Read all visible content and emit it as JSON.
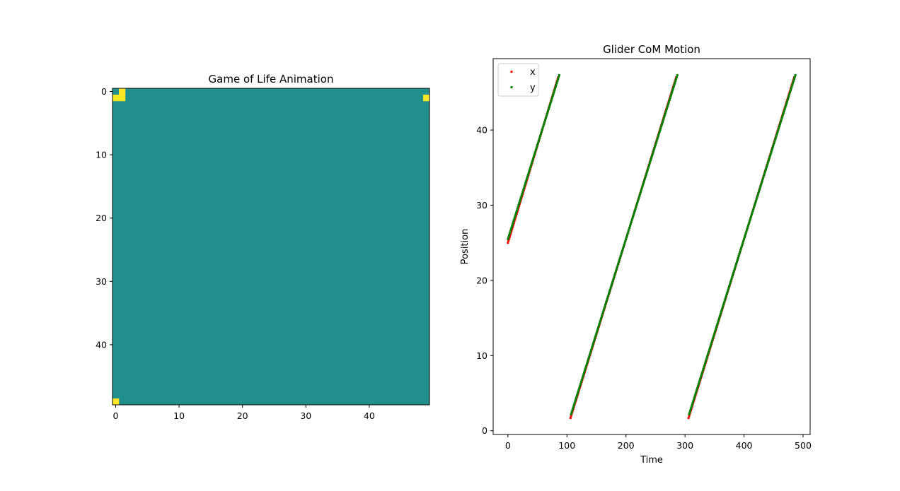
{
  "figure": {
    "background": "#ffffff"
  },
  "chart_data": [
    {
      "type": "heatmap",
      "title": "Game of Life Animation",
      "grid_size": [
        50,
        50
      ],
      "xlim": [
        -0.5,
        49.5
      ],
      "ylim": [
        49.5,
        -0.5
      ],
      "xticks": [
        0,
        10,
        20,
        30,
        40
      ],
      "yticks": [
        0,
        10,
        20,
        30,
        40
      ],
      "colors": {
        "dead": "#21908d",
        "alive": "#fde725"
      },
      "alive_cells": [
        [
          0,
          0
        ],
        [
          0,
          1
        ],
        [
          1,
          1
        ],
        [
          1,
          0
        ],
        [
          49,
          1
        ],
        [
          0,
          49
        ]
      ],
      "dead_highlight_cells": [
        [
          0,
          0
        ]
      ]
    },
    {
      "type": "scatter",
      "title": "Glider CoM Motion",
      "xlabel": "Time",
      "ylabel": "Position",
      "xlim": [
        -25,
        512
      ],
      "ylim": [
        -0.5,
        49.5
      ],
      "xticks": [
        0,
        100,
        200,
        300,
        400,
        500
      ],
      "yticks": [
        0,
        10,
        20,
        30,
        40
      ],
      "legend_position": "upper-left",
      "series": [
        {
          "name": "x",
          "color": "#ff0000",
          "segments": [
            {
              "t_start": 0,
              "t_end": 85,
              "pos_start": 25.0,
              "pos_end": 47.0
            },
            {
              "t_start": 106,
              "t_end": 285,
              "pos_start": 1.7,
              "pos_end": 47.0
            },
            {
              "t_start": 306,
              "t_end": 485,
              "pos_start": 1.7,
              "pos_end": 47.0
            }
          ]
        },
        {
          "name": "y",
          "color": "#008000",
          "segments": [
            {
              "t_start": 0,
              "t_end": 87,
              "pos_start": 25.5,
              "pos_end": 47.3
            },
            {
              "t_start": 107,
              "t_end": 287,
              "pos_start": 2.2,
              "pos_end": 47.3
            },
            {
              "t_start": 307,
              "t_end": 487,
              "pos_start": 2.2,
              "pos_end": 47.3
            }
          ]
        }
      ]
    }
  ]
}
